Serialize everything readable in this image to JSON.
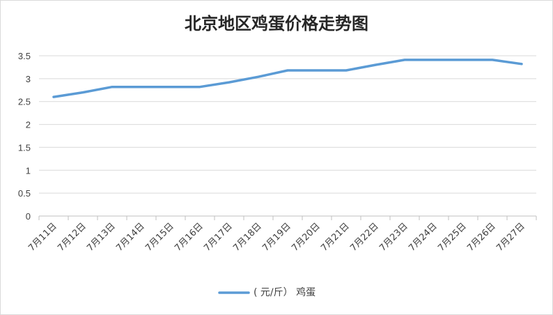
{
  "chart_data": {
    "type": "line",
    "title": "北京地区鸡蛋价格走势图",
    "xlabel": "",
    "ylabel": "",
    "categories": [
      "7月11日",
      "7月12日",
      "7月13日",
      "7月14日",
      "7月15日",
      "7月16日",
      "7月17日",
      "7月18日",
      "7月19日",
      "7月20日",
      "7月21日",
      "7月22日",
      "7月23日",
      "7月24日",
      "7月25日",
      "7月26日",
      "7月27日"
    ],
    "series": [
      {
        "name": "( 元/斤） 鸡蛋",
        "color": "#5b9bd5",
        "values": [
          2.6,
          2.7,
          2.82,
          2.82,
          2.82,
          2.82,
          2.92,
          3.04,
          3.18,
          3.18,
          3.18,
          3.3,
          3.41,
          3.41,
          3.41,
          3.41,
          3.32
        ]
      }
    ],
    "ylim": [
      0,
      3.5
    ],
    "yticks": [
      "0",
      "0.5",
      "1",
      "1.5",
      "2",
      "2.5",
      "3",
      "3.5"
    ],
    "grid": true,
    "legend_position": "bottom"
  }
}
